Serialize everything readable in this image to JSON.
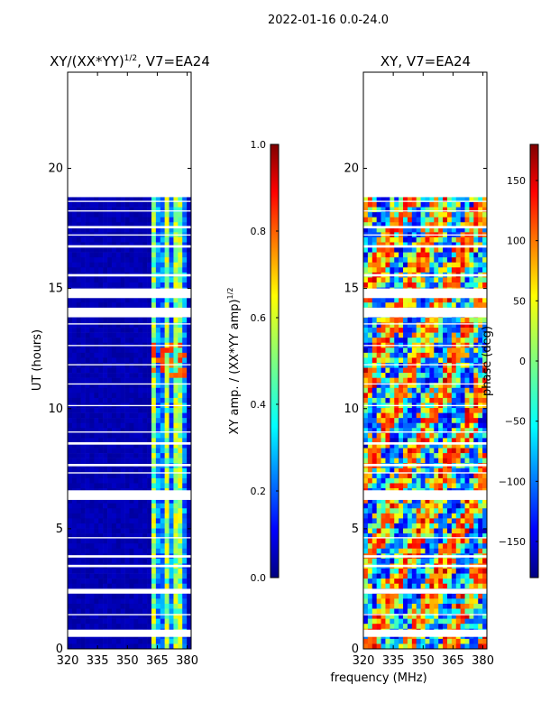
{
  "figure": {
    "suptitle": "2022-01-16 0.0-24.0",
    "xlabel": "frequency (MHz)"
  },
  "colors": {
    "jet": [
      "#00007f",
      "#0000ff",
      "#007fff",
      "#00ffff",
      "#7fff7f",
      "#ffff00",
      "#ff7f00",
      "#ff0000",
      "#7f0000"
    ],
    "frame": "#000000",
    "gap": "#ffffff"
  },
  "chart_data": [
    {
      "type": "heatmap",
      "title_main": "XY/(XX*YY)",
      "title_sup": "1/2",
      "title_rest": ", V7=EA24",
      "xlabel": "",
      "ylabel": "UT (hours)",
      "xlim": [
        320,
        382
      ],
      "ylim": [
        0,
        24
      ],
      "xticks": [
        320,
        335,
        350,
        365,
        380
      ],
      "yticks": [
        0,
        5,
        10,
        15,
        20
      ],
      "data_extent_ut": [
        0,
        18.8
      ],
      "quantity": "amplitude",
      "colorbar": {
        "label": "XY amp. / (XX*YY amp)",
        "label_sup": "1/2",
        "range": [
          0.0,
          1.0
        ],
        "ticks": [
          "0.0",
          "0.2",
          "0.4",
          "0.6",
          "0.8",
          "1.0"
        ],
        "tick_values": [
          0.0,
          0.2,
          0.4,
          0.6,
          0.8,
          1.0
        ]
      }
    },
    {
      "type": "heatmap",
      "title_main": "XY, V7=EA24",
      "xlabel": "frequency (MHz)",
      "ylabel": "",
      "xlim": [
        320,
        382
      ],
      "ylim": [
        0,
        24
      ],
      "xticks": [
        320,
        335,
        350,
        365,
        380
      ],
      "yticks": [
        0,
        5,
        10,
        15,
        20
      ],
      "data_extent_ut": [
        0,
        18.8
      ],
      "quantity": "phase",
      "colorbar": {
        "label": "phase (deg)",
        "range": [
          -180,
          180
        ],
        "ticks": [
          "−150",
          "−100",
          "−50",
          "0",
          "50",
          "100",
          "150"
        ],
        "tick_values": [
          -150,
          -100,
          -50,
          0,
          50,
          100,
          150
        ]
      }
    }
  ],
  "flagged_gaps_ut": [
    [
      0.5,
      0.8
    ],
    [
      1.4,
      1.45
    ],
    [
      2.3,
      2.5
    ],
    [
      3.4,
      3.5
    ],
    [
      3.8,
      3.9
    ],
    [
      4.6,
      4.65
    ],
    [
      6.2,
      6.6
    ],
    [
      7.3,
      7.35
    ],
    [
      7.6,
      7.7
    ],
    [
      8.5,
      8.6
    ],
    [
      9.0,
      9.05
    ],
    [
      10.1,
      10.15
    ],
    [
      11.0,
      11.05
    ],
    [
      11.8,
      11.85
    ],
    [
      12.6,
      12.65
    ],
    [
      13.5,
      13.55
    ],
    [
      13.8,
      14.2
    ],
    [
      14.6,
      15.0
    ],
    [
      15.5,
      15.6
    ],
    [
      16.7,
      16.8
    ],
    [
      17.2,
      17.25
    ],
    [
      17.5,
      17.6
    ],
    [
      18.2,
      18.25
    ],
    [
      18.6,
      18.65
    ]
  ]
}
